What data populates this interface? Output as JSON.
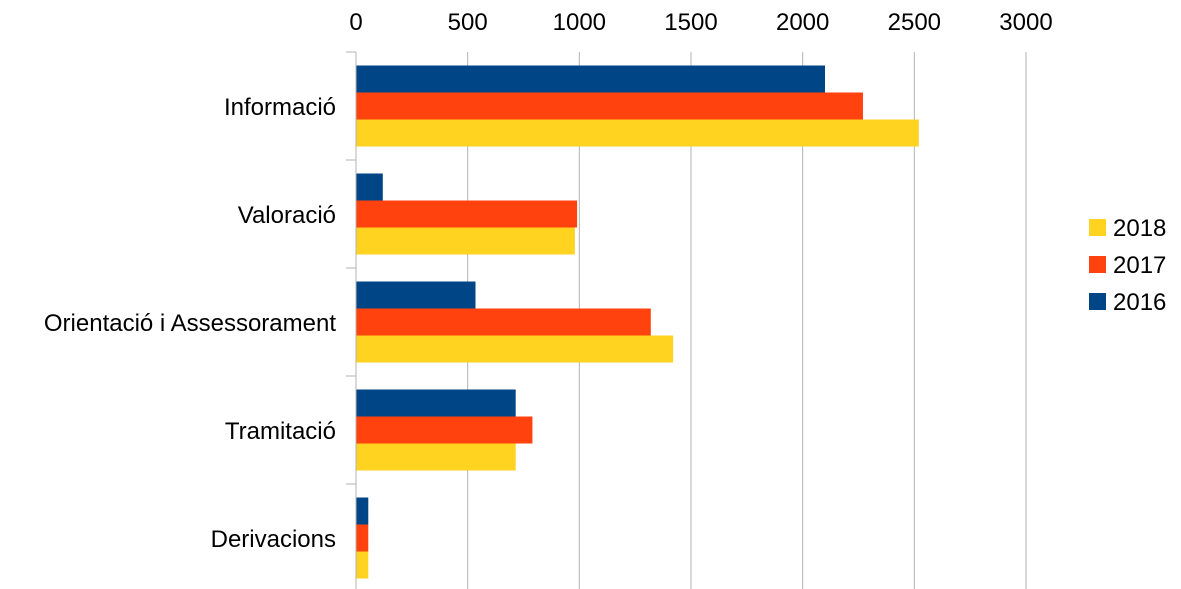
{
  "chart_data": {
    "type": "bar",
    "orientation": "horizontal",
    "categories": [
      "Informació",
      "Valoració",
      "Orientació i Assessorament",
      "Tramitació",
      "Derivacions"
    ],
    "series": [
      {
        "name": "2016",
        "color": "#004586",
        "values": [
          2100,
          120,
          535,
          715,
          55
        ]
      },
      {
        "name": "2017",
        "color": "#ff420e",
        "values": [
          2270,
          990,
          1320,
          790,
          55
        ]
      },
      {
        "name": "2018",
        "color": "#ffd320",
        "values": [
          2520,
          980,
          1420,
          715,
          55
        ]
      }
    ],
    "xlim": [
      0,
      3000
    ],
    "x_ticks": [
      "0",
      "500",
      "1000",
      "1500",
      "2000",
      "2500",
      "3000"
    ],
    "x_axis_position": "top",
    "grid": true,
    "legend_position": "right",
    "legend_order": [
      "2018",
      "2017",
      "2016"
    ]
  }
}
